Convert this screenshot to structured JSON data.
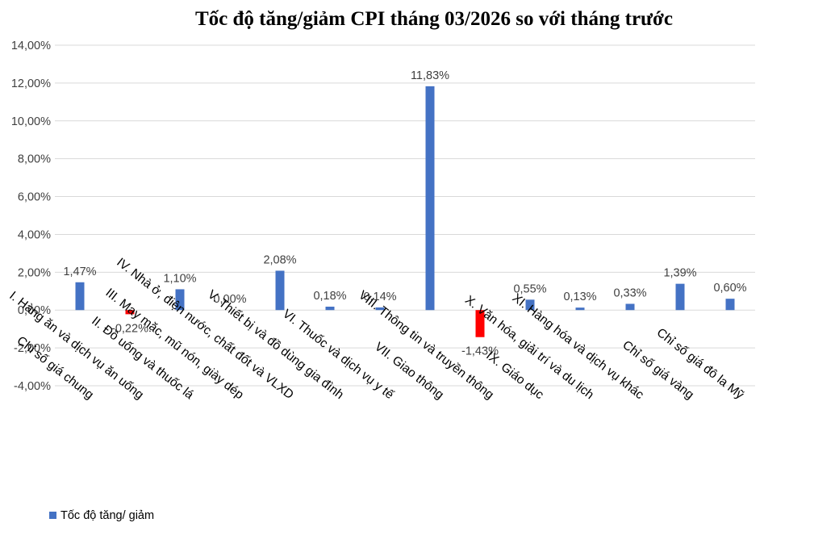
{
  "chart_data": {
    "type": "bar",
    "title": "Tốc độ tăng/giảm CPI tháng 03/2026 so với tháng trước",
    "xlabel": "",
    "ylabel": "",
    "ylim": [
      -4,
      14
    ],
    "y_ticks": [
      "14,00%",
      "12,00%",
      "10,00%",
      "8,00%",
      "6,00%",
      "4,00%",
      "2,00%",
      "0,00%",
      "-2,00%",
      "-4,00%"
    ],
    "y_tick_values": [
      14,
      12,
      10,
      8,
      6,
      4,
      2,
      0,
      -2,
      -4
    ],
    "grid": true,
    "legend_position": "bottom-left",
    "categories": [
      "Chỉ số giá chung",
      "I. Hàng ăn và dịch vụ ăn uống",
      "II. Đồ uống và thuốc lá",
      "III. May mặc, mũ nón, giày dép",
      "IV. Nhà ở, điện nước, chất đốt và VLXD",
      "V. Thiết bị và đồ dùng gia đình",
      "VI. Thuốc và dịch vụ y tế",
      "VII. Giao thông",
      "VIII. Thông tin và truyền thông",
      "IX. Giáo dục",
      "X. Văn hóa, giải trí và du lịch",
      "XI. Hàng hóa và dịch vụ khác",
      "Chỉ số giá vàng",
      "Chỉ số giá đô la Mỹ"
    ],
    "series": [
      {
        "name": "Tốc độ tăng/ giảm",
        "values": [
          1.47,
          -0.22,
          1.1,
          0.0,
          2.08,
          0.18,
          0.14,
          11.83,
          -1.43,
          0.55,
          0.13,
          0.33,
          1.39,
          0.6
        ],
        "labels": [
          "1,47%",
          "-0,22%",
          "1,10%",
          "0,00%",
          "2,08%",
          "0,18%",
          "0,14%",
          "11,83%",
          "-1,43%",
          "0,55%",
          "0,13%",
          "0,33%",
          "1,39%",
          "0,60%"
        ]
      }
    ],
    "colors": {
      "positive": "#4472c4",
      "negative": "#ff0000"
    }
  }
}
